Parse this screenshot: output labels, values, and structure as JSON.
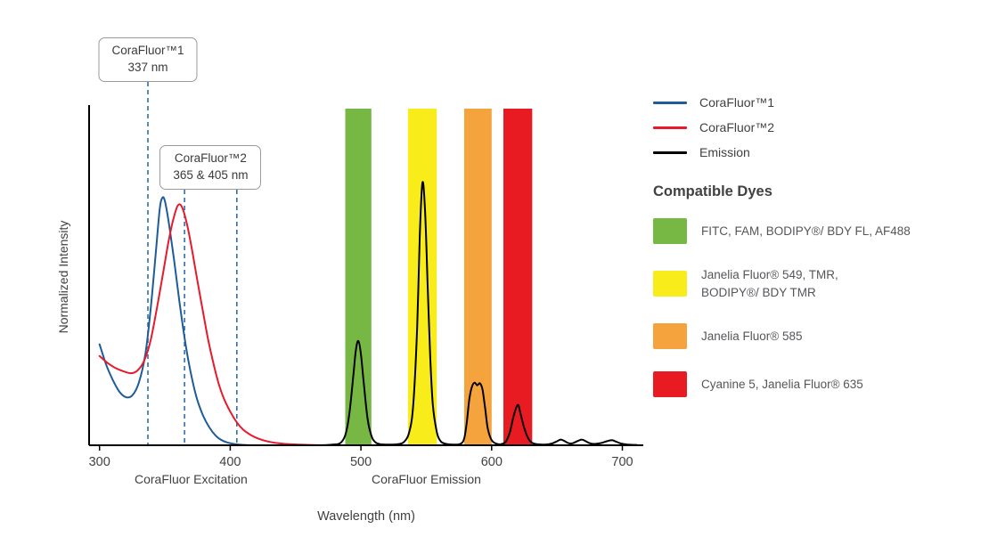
{
  "chart_data": {
    "type": "line",
    "title": "",
    "xlabel": "Wavelength (nm)",
    "ylabel": "Normalized Intensity",
    "xlim": [
      292,
      716
    ],
    "ylim": [
      0,
      1.0
    ],
    "xticks": [
      300,
      400,
      500,
      600,
      700
    ],
    "grid": false,
    "x_section_labels": [
      {
        "text": "CoraFluor Excitation",
        "x": 370
      },
      {
        "text": "CoraFluor Emission",
        "x": 550
      }
    ],
    "dashed_line_color": "#2e6fad",
    "callouts": [
      {
        "title": "CoraFluor™1",
        "subtitle": "337 nm",
        "wavelengths": [
          337
        ]
      },
      {
        "title": "CoraFluor™2",
        "subtitle": "365 & 405 nm",
        "wavelengths": [
          365,
          405
        ]
      }
    ],
    "filter_bands": [
      {
        "name": "green-band",
        "x1": 488,
        "x2": 508,
        "color": "#76b843"
      },
      {
        "name": "yellow-band",
        "x1": 536,
        "x2": 558,
        "color": "#f8ed1b"
      },
      {
        "name": "orange-band",
        "x1": 579,
        "x2": 600,
        "color": "#f5a33c"
      },
      {
        "name": "red-band",
        "x1": 609,
        "x2": 631,
        "color": "#e81b23"
      }
    ],
    "series": [
      {
        "name": "CoraFluor™1",
        "role": "excitation",
        "color": "#1e5c99",
        "points": [
          [
            300,
            0.3
          ],
          [
            305,
            0.24
          ],
          [
            310,
            0.195
          ],
          [
            315,
            0.16
          ],
          [
            320,
            0.143
          ],
          [
            325,
            0.148
          ],
          [
            330,
            0.185
          ],
          [
            335,
            0.27
          ],
          [
            339,
            0.4
          ],
          [
            343,
            0.57
          ],
          [
            346,
            0.7
          ],
          [
            348,
            0.735
          ],
          [
            350,
            0.725
          ],
          [
            353,
            0.66
          ],
          [
            357,
            0.55
          ],
          [
            361,
            0.43
          ],
          [
            365,
            0.32
          ],
          [
            369,
            0.23
          ],
          [
            374,
            0.145
          ],
          [
            379,
            0.09
          ],
          [
            384,
            0.053
          ],
          [
            389,
            0.028
          ],
          [
            394,
            0.014
          ],
          [
            400,
            0.006
          ],
          [
            407,
            0.002
          ],
          [
            417,
            0.0
          ]
        ]
      },
      {
        "name": "CoraFluor™2",
        "role": "excitation",
        "color": "#e8192b",
        "points": [
          [
            300,
            0.265
          ],
          [
            306,
            0.245
          ],
          [
            312,
            0.23
          ],
          [
            318,
            0.22
          ],
          [
            324,
            0.214
          ],
          [
            329,
            0.222
          ],
          [
            334,
            0.25
          ],
          [
            339,
            0.31
          ],
          [
            344,
            0.41
          ],
          [
            349,
            0.52
          ],
          [
            353,
            0.61
          ],
          [
            357,
            0.68
          ],
          [
            360,
            0.713
          ],
          [
            363,
            0.708
          ],
          [
            367,
            0.655
          ],
          [
            371,
            0.575
          ],
          [
            375,
            0.485
          ],
          [
            379,
            0.4
          ],
          [
            383,
            0.315
          ],
          [
            387,
            0.245
          ],
          [
            391,
            0.185
          ],
          [
            395,
            0.14
          ],
          [
            400,
            0.1
          ],
          [
            405,
            0.068
          ],
          [
            410,
            0.046
          ],
          [
            416,
            0.03
          ],
          [
            422,
            0.019
          ],
          [
            429,
            0.011
          ],
          [
            437,
            0.006
          ],
          [
            447,
            0.003
          ],
          [
            460,
            0.001
          ],
          [
            476,
            0.0
          ]
        ]
      },
      {
        "name": "Emission",
        "role": "emission",
        "color": "#000000",
        "points": [
          [
            470,
            0.0
          ],
          [
            478,
            0.002
          ],
          [
            484,
            0.006
          ],
          [
            488,
            0.03
          ],
          [
            491,
            0.09
          ],
          [
            494,
            0.2
          ],
          [
            496,
            0.28
          ],
          [
            498,
            0.31
          ],
          [
            500,
            0.27
          ],
          [
            502,
            0.19
          ],
          [
            505,
            0.08
          ],
          [
            508,
            0.028
          ],
          [
            511,
            0.009
          ],
          [
            515,
            0.003
          ],
          [
            521,
            0.002
          ],
          [
            528,
            0.003
          ],
          [
            533,
            0.01
          ],
          [
            537,
            0.04
          ],
          [
            540,
            0.12
          ],
          [
            543,
            0.35
          ],
          [
            545,
            0.62
          ],
          [
            547,
            0.78
          ],
          [
            549,
            0.7
          ],
          [
            551,
            0.48
          ],
          [
            553,
            0.26
          ],
          [
            555,
            0.12
          ],
          [
            558,
            0.04
          ],
          [
            561,
            0.012
          ],
          [
            565,
            0.004
          ],
          [
            570,
            0.002
          ],
          [
            576,
            0.004
          ],
          [
            579,
            0.02
          ],
          [
            581,
            0.07
          ],
          [
            583,
            0.14
          ],
          [
            585,
            0.175
          ],
          [
            587,
            0.186
          ],
          [
            589,
            0.178
          ],
          [
            591,
            0.184
          ],
          [
            593,
            0.165
          ],
          [
            595,
            0.11
          ],
          [
            597,
            0.05
          ],
          [
            600,
            0.015
          ],
          [
            604,
            0.004
          ],
          [
            608,
            0.004
          ],
          [
            611,
            0.012
          ],
          [
            614,
            0.04
          ],
          [
            617,
            0.09
          ],
          [
            620,
            0.12
          ],
          [
            622,
            0.095
          ],
          [
            625,
            0.05
          ],
          [
            628,
            0.02
          ],
          [
            631,
            0.007
          ],
          [
            635,
            0.003
          ],
          [
            641,
            0.002
          ],
          [
            646,
            0.005
          ],
          [
            650,
            0.012
          ],
          [
            653,
            0.017
          ],
          [
            656,
            0.012
          ],
          [
            659,
            0.006
          ],
          [
            662,
            0.006
          ],
          [
            666,
            0.013
          ],
          [
            669,
            0.017
          ],
          [
            672,
            0.012
          ],
          [
            675,
            0.006
          ],
          [
            679,
            0.004
          ],
          [
            684,
            0.007
          ],
          [
            688,
            0.012
          ],
          [
            692,
            0.015
          ],
          [
            695,
            0.011
          ],
          [
            699,
            0.005
          ],
          [
            704,
            0.002
          ],
          [
            711,
            0.001
          ]
        ]
      }
    ]
  },
  "legend": {
    "items": [
      {
        "label": "CoraFluor™1",
        "color": "#1e5c99"
      },
      {
        "label": "CoraFluor™2",
        "color": "#e8192b"
      },
      {
        "label": "Emission",
        "color": "#000000"
      }
    ]
  },
  "compatible_dyes": {
    "heading": "Compatible Dyes",
    "items": [
      {
        "color": "#76b843",
        "label": "FITC, FAM, BODIPY®/ BDY FL, AF488"
      },
      {
        "color": "#f8ed1b",
        "label": "Janelia Fluor® 549, TMR,\nBODIPY®/ BDY TMR"
      },
      {
        "color": "#f5a33c",
        "label": "Janelia Fluor® 585"
      },
      {
        "color": "#e81b23",
        "label": "Cyanine 5, Janelia Fluor® 635"
      }
    ]
  }
}
